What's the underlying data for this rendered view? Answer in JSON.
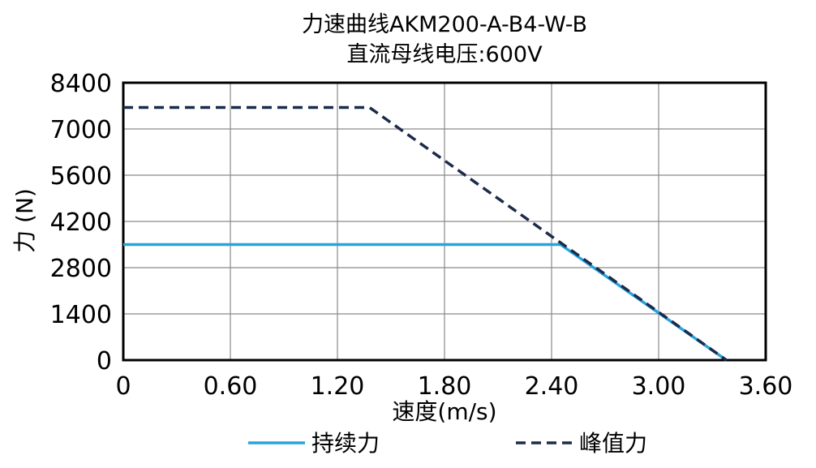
{
  "chart_data": {
    "type": "line",
    "title": "力速曲线AKM200-A-B4-W-B",
    "subtitle": "直流母线电压:600V",
    "xlabel": "速度(m/s)",
    "ylabel": "力 (N)",
    "xlim": [
      0,
      3.6
    ],
    "ylim": [
      0,
      8400
    ],
    "xticks": [
      "0",
      "0.60",
      "1.20",
      "1.80",
      "2.40",
      "3.00",
      "3.60"
    ],
    "yticks": [
      "0",
      "1400",
      "2800",
      "4200",
      "5600",
      "7000",
      "8400"
    ],
    "grid": true,
    "legend_position": "bottom",
    "series": [
      {
        "name": "持续力",
        "style": "solid",
        "color": "#27a3dd",
        "x": [
          0,
          2.45,
          3.38
        ],
        "y": [
          3500,
          3500,
          0
        ]
      },
      {
        "name": "峰值力",
        "style": "dashed",
        "color": "#1c2b4a",
        "x": [
          0,
          1.38,
          3.38
        ],
        "y": [
          7650,
          7650,
          0
        ]
      }
    ]
  }
}
